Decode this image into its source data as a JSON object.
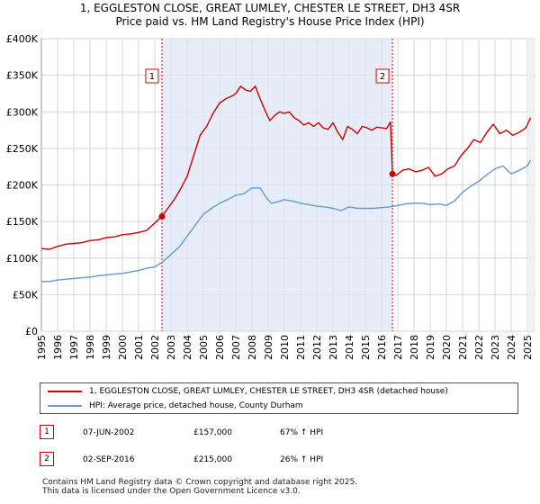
{
  "chart_data": {
    "type": "line",
    "title": "1, EGGLESTON CLOSE, GREAT LUMLEY, CHESTER LE STREET, DH3 4SR",
    "subtitle": "Price paid vs. HM Land Registry's House Price Index (HPI)",
    "xlim": [
      1995,
      2025.5
    ],
    "ylim": [
      0,
      400000
    ],
    "y_ticks": [
      {
        "value": 0,
        "label": "£0"
      },
      {
        "value": 50000,
        "label": "£50K"
      },
      {
        "value": 100000,
        "label": "£100K"
      },
      {
        "value": 150000,
        "label": "£150K"
      },
      {
        "value": 200000,
        "label": "£200K"
      },
      {
        "value": 250000,
        "label": "£250K"
      },
      {
        "value": 300000,
        "label": "£300K"
      },
      {
        "value": 350000,
        "label": "£350K"
      },
      {
        "value": 400000,
        "label": "£400K"
      }
    ],
    "x_ticks": [
      "1995",
      "1996",
      "1997",
      "1998",
      "1999",
      "2000",
      "2001",
      "2002",
      "2003",
      "2004",
      "2005",
      "2006",
      "2007",
      "2008",
      "2009",
      "2010",
      "2011",
      "2012",
      "2013",
      "2014",
      "2015",
      "2016",
      "2017",
      "2018",
      "2019",
      "2020",
      "2021",
      "2022",
      "2023",
      "2024",
      "2025"
    ],
    "series": [
      {
        "name": "1, EGGLESTON CLOSE, GREAT LUMLEY, CHESTER LE STREET, DH3 4SR (detached house)",
        "color": "#cc0000",
        "x": [
          1995.0,
          1995.5,
          1996.0,
          1996.5,
          1997.0,
          1997.5,
          1998.0,
          1998.5,
          1999.0,
          1999.5,
          2000.0,
          2000.5,
          2001.0,
          2001.5,
          2002.0,
          2002.44,
          2002.8,
          2003.2,
          2003.6,
          2004.0,
          2004.4,
          2004.8,
          2005.2,
          2005.6,
          2006.0,
          2006.4,
          2006.8,
          2007.0,
          2007.3,
          2007.6,
          2007.9,
          2008.2,
          2008.5,
          2008.8,
          2009.1,
          2009.4,
          2009.7,
          2010.0,
          2010.3,
          2010.6,
          2010.9,
          2011.2,
          2011.5,
          2011.8,
          2012.1,
          2012.4,
          2012.7,
          2013.0,
          2013.3,
          2013.6,
          2013.9,
          2014.2,
          2014.5,
          2014.8,
          2015.1,
          2015.4,
          2015.7,
          2016.0,
          2016.3,
          2016.55,
          2016.67,
          2016.9,
          2017.3,
          2017.7,
          2018.1,
          2018.5,
          2018.9,
          2019.3,
          2019.7,
          2020.1,
          2020.5,
          2020.9,
          2021.3,
          2021.7,
          2022.1,
          2022.5,
          2022.9,
          2023.3,
          2023.7,
          2024.1,
          2024.5,
          2024.9,
          2025.2
        ],
        "values": [
          113000,
          112000,
          116000,
          119000,
          120000,
          121000,
          124000,
          125000,
          128000,
          129000,
          132000,
          133000,
          135000,
          138000,
          148000,
          157000,
          168000,
          180000,
          195000,
          212000,
          240000,
          268000,
          280000,
          298000,
          312000,
          318000,
          322000,
          325000,
          335000,
          330000,
          328000,
          335000,
          318000,
          302000,
          288000,
          295000,
          300000,
          298000,
          300000,
          292000,
          288000,
          282000,
          285000,
          280000,
          285000,
          278000,
          276000,
          285000,
          272000,
          262000,
          280000,
          276000,
          270000,
          280000,
          278000,
          275000,
          279000,
          278000,
          277000,
          286000,
          215000,
          213000,
          220000,
          222000,
          218000,
          220000,
          224000,
          212000,
          215000,
          222000,
          226000,
          240000,
          250000,
          262000,
          258000,
          272000,
          283000,
          270000,
          275000,
          268000,
          272000,
          278000,
          292000
        ]
      },
      {
        "name": "HPI: Average price, detached house, County Durham",
        "color": "#6699cc",
        "x": [
          1995.0,
          1995.5,
          1996.0,
          1996.5,
          1997.0,
          1997.5,
          1998.0,
          1998.5,
          1999.0,
          1999.5,
          2000.0,
          2000.5,
          2001.0,
          2001.5,
          2002.0,
          2002.5,
          2003.0,
          2003.5,
          2004.0,
          2004.5,
          2005.0,
          2005.5,
          2006.0,
          2006.5,
          2007.0,
          2007.5,
          2008.0,
          2008.5,
          2008.9,
          2009.2,
          2009.6,
          2010.0,
          2010.5,
          2011.0,
          2011.5,
          2012.0,
          2012.5,
          2013.0,
          2013.5,
          2014.0,
          2014.5,
          2015.0,
          2015.5,
          2016.0,
          2016.5,
          2017.0,
          2017.5,
          2018.0,
          2018.5,
          2019.0,
          2019.5,
          2020.0,
          2020.5,
          2021.0,
          2021.5,
          2022.0,
          2022.5,
          2023.0,
          2023.5,
          2024.0,
          2024.5,
          2025.0,
          2025.2
        ],
        "values": [
          68000,
          68000,
          70000,
          71000,
          72000,
          73000,
          74000,
          76000,
          77000,
          78000,
          79000,
          81000,
          83000,
          86000,
          88000,
          95000,
          105000,
          115000,
          130000,
          145000,
          160000,
          168000,
          175000,
          180000,
          186000,
          188000,
          196000,
          196000,
          182000,
          175000,
          177000,
          180000,
          178000,
          175000,
          173000,
          171000,
          170000,
          168000,
          165000,
          170000,
          168000,
          168000,
          168000,
          169000,
          170000,
          172000,
          174000,
          175000,
          175000,
          173000,
          174000,
          172000,
          178000,
          190000,
          198000,
          205000,
          214000,
          222000,
          226000,
          215000,
          220000,
          226000,
          234000
        ]
      }
    ],
    "sales": [
      {
        "number": "1",
        "x": 2002.44,
        "value": 157000
      },
      {
        "number": "2",
        "x": 2016.67,
        "value": 215000
      }
    ]
  },
  "legend": {
    "red_label": "1, EGGLESTON CLOSE, GREAT LUMLEY, CHESTER LE STREET, DH3 4SR (detached house)",
    "blue_label": "HPI: Average price, detached house, County Durham"
  },
  "sales_table": [
    {
      "number": "1",
      "date": "07-JUN-2002",
      "price": "£157,000",
      "hpi": "67% ↑ HPI"
    },
    {
      "number": "2",
      "date": "02-SEP-2016",
      "price": "£215,000",
      "hpi": "26% ↑ HPI"
    }
  ],
  "footer": {
    "line1": "Contains HM Land Registry data © Crown copyright and database right 2025.",
    "line2": "This data is licensed under the Open Government Licence v3.0."
  }
}
